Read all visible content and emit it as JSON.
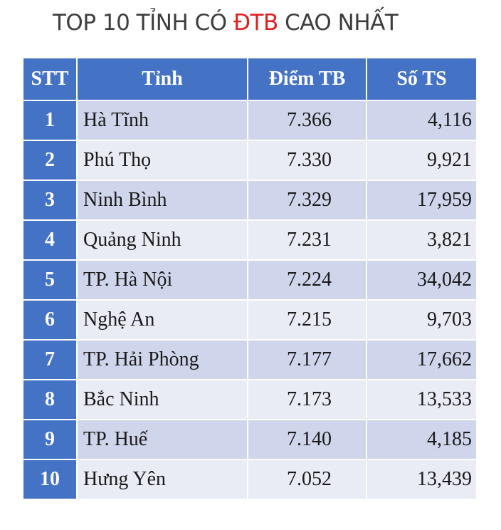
{
  "title": {
    "prefix": "TOP 10 TỈNH CÓ ",
    "highlight": "ĐTB",
    "suffix": " CAO NHẤT",
    "highlight_color": "#e02020"
  },
  "colors": {
    "header": "#4472c4",
    "row_odd": "#cfd5ea",
    "row_even": "#e9ebf5"
  },
  "table": {
    "headers": [
      "STT",
      "Tỉnh",
      "Điểm TB",
      "Số TS"
    ],
    "rows": [
      {
        "stt": "1",
        "province": "Hà Tĩnh",
        "score": "7.366",
        "count": "4,116"
      },
      {
        "stt": "2",
        "province": "Phú Thọ",
        "score": "7.330",
        "count": "9,921"
      },
      {
        "stt": "3",
        "province": "Ninh Bình",
        "score": "7.329",
        "count": "17,959"
      },
      {
        "stt": "4",
        "province": "Quảng Ninh",
        "score": "7.231",
        "count": "3,821"
      },
      {
        "stt": "5",
        "province": "TP. Hà Nội",
        "score": "7.224",
        "count": "34,042"
      },
      {
        "stt": "6",
        "province": "Nghệ An",
        "score": "7.215",
        "count": "9,703"
      },
      {
        "stt": "7",
        "province": "TP. Hải Phòng",
        "score": "7.177",
        "count": "17,662"
      },
      {
        "stt": "8",
        "province": "Bắc Ninh",
        "score": "7.173",
        "count": "13,533"
      },
      {
        "stt": "9",
        "province": "TP. Huế",
        "score": "7.140",
        "count": "4,185"
      },
      {
        "stt": "10",
        "province": "Hưng Yên",
        "score": "7.052",
        "count": "13,439"
      }
    ]
  }
}
